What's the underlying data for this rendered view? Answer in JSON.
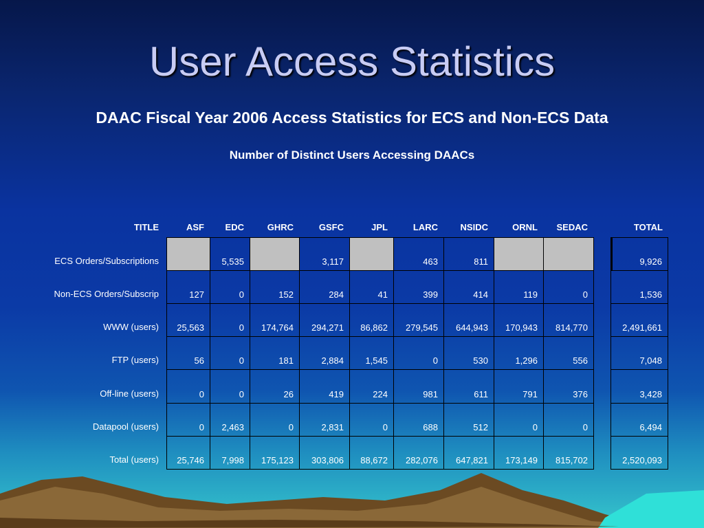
{
  "title": "User Access Statistics",
  "subtitle": "DAAC Fiscal Year 2006 Access Statistics for ECS and Non-ECS Data",
  "table_caption": "Number of Distinct Users Accessing DAACs",
  "table": {
    "headers": [
      "TITLE",
      "ASF",
      "EDC",
      "GHRC",
      "GSFC",
      "JPL",
      "LARC",
      "NSIDC",
      "ORNL",
      "SEDAC",
      "TOTAL"
    ],
    "rows": [
      {
        "label": "ECS Orders/Subscriptions",
        "values": [
          null,
          "5,535",
          null,
          "3,117",
          null,
          "463",
          "811",
          null,
          null
        ],
        "total": "9,926"
      },
      {
        "label": "Non-ECS Orders/Subscrip",
        "values": [
          "127",
          "0",
          "152",
          "284",
          "41",
          "399",
          "414",
          "119",
          "0"
        ],
        "total": "1,536"
      },
      {
        "label": "WWW (users)",
        "values": [
          "25,563",
          "0",
          "174,764",
          "294,271",
          "86,862",
          "279,545",
          "644,943",
          "170,943",
          "814,770"
        ],
        "total": "2,491,661"
      },
      {
        "label": "FTP (users)",
        "values": [
          "56",
          "0",
          "181",
          "2,884",
          "1,545",
          "0",
          "530",
          "1,296",
          "556"
        ],
        "total": "7,048"
      },
      {
        "label": "Off-line (users)",
        "values": [
          "0",
          "0",
          "26",
          "419",
          "224",
          "981",
          "611",
          "791",
          "376"
        ],
        "total": "3,428"
      },
      {
        "label": "Datapool (users)",
        "values": [
          "0",
          "2,463",
          "0",
          "2,831",
          "0",
          "688",
          "512",
          "0",
          "0"
        ],
        "total": "6,494"
      },
      {
        "label": "Total (users)",
        "values": [
          "25,746",
          "7,998",
          "175,123",
          "303,806",
          "88,672",
          "282,076",
          "647,821",
          "173,149",
          "815,702"
        ],
        "total": "2,520,093"
      }
    ]
  }
}
